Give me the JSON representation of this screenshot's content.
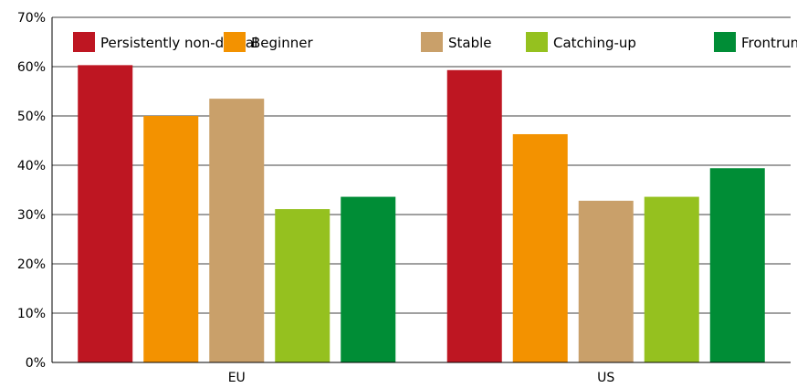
{
  "chart_data": {
    "type": "bar",
    "categories": [
      "EU",
      "US"
    ],
    "series": [
      {
        "name": "Persistently non-digital",
        "color": "#be1622",
        "values": [
          60.3,
          59.3
        ]
      },
      {
        "name": "Beginner",
        "color": "#f39200",
        "values": [
          50.0,
          46.3
        ]
      },
      {
        "name": "Stable",
        "color": "#c9a06a",
        "values": [
          53.5,
          32.8
        ]
      },
      {
        "name": "Catching-up",
        "color": "#95c11f",
        "values": [
          31.1,
          33.6
        ]
      },
      {
        "name": "Frontrunner",
        "color": "#008d36",
        "values": [
          33.6,
          39.4
        ]
      }
    ],
    "yticks": [
      "0%",
      "10%",
      "20%",
      "30%",
      "40%",
      "50%",
      "60%",
      "70%"
    ],
    "ylim": [
      0,
      70
    ],
    "grid": true,
    "legend_position": "top"
  }
}
